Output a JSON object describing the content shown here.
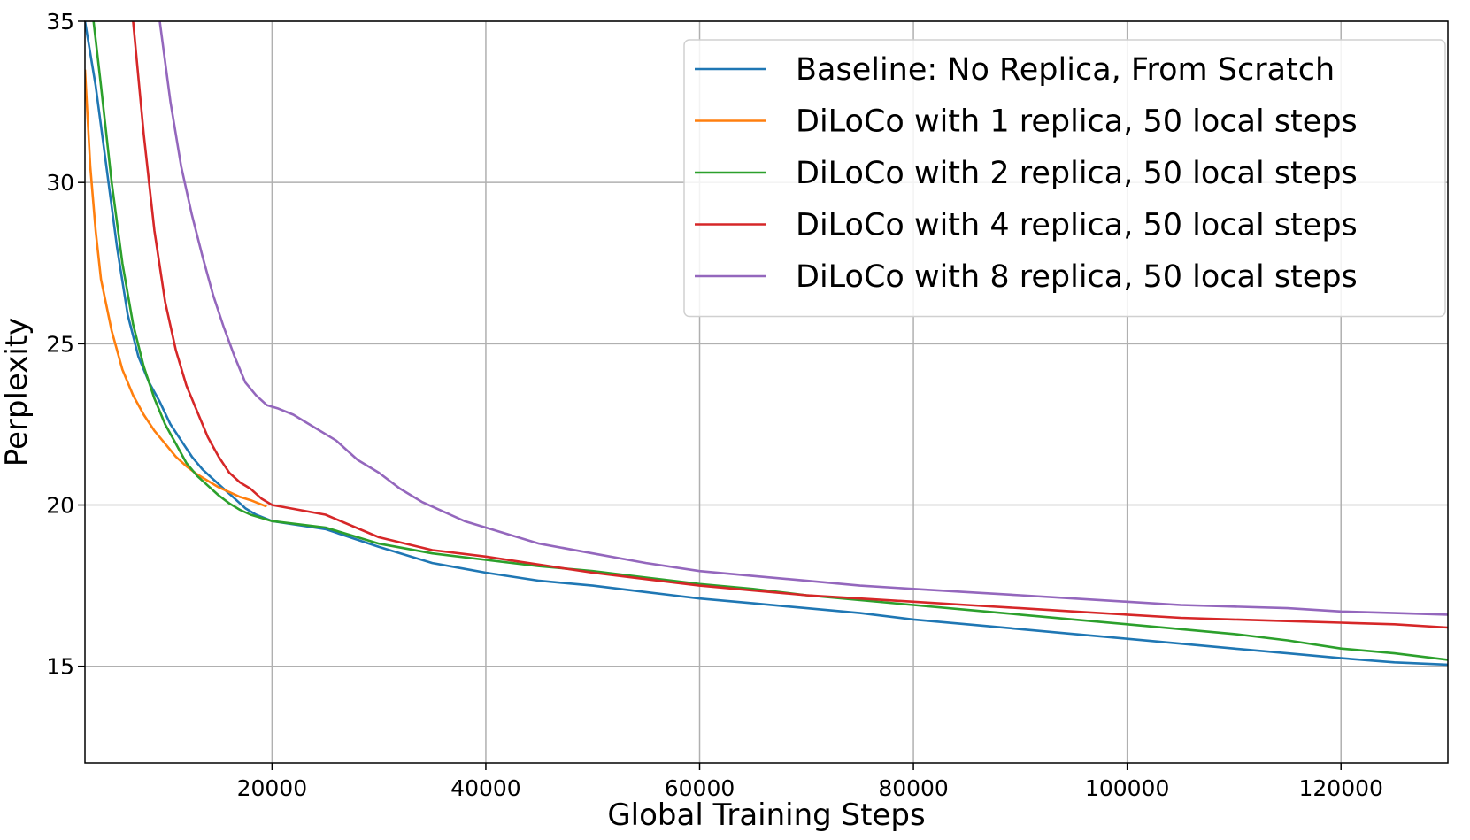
{
  "chart_data": {
    "type": "line",
    "title": "",
    "xlabel": "Global Training Steps",
    "ylabel": "Perplexity",
    "xlim": [
      2500,
      130000
    ],
    "ylim": [
      12,
      35
    ],
    "x_ticks": [
      20000,
      40000,
      60000,
      80000,
      100000,
      120000
    ],
    "y_ticks": [
      15,
      20,
      25,
      30,
      35
    ],
    "grid": true,
    "legend_position": "top-right",
    "series": [
      {
        "name": "Baseline: No Replica, From Scratch",
        "color": "#1f77b4",
        "points": [
          [
            2500,
            35
          ],
          [
            3500,
            33
          ],
          [
            4500,
            30.5
          ],
          [
            5500,
            28
          ],
          [
            6500,
            25.9
          ],
          [
            7500,
            24.6
          ],
          [
            8500,
            23.8
          ],
          [
            9500,
            23.2
          ],
          [
            10500,
            22.5
          ],
          [
            11500,
            22
          ],
          [
            12500,
            21.5
          ],
          [
            13500,
            21.1
          ],
          [
            14500,
            20.8
          ],
          [
            15500,
            20.5
          ],
          [
            16500,
            20.2
          ],
          [
            17500,
            19.9
          ],
          [
            18500,
            19.7
          ],
          [
            20000,
            19.5
          ],
          [
            25000,
            19.25
          ],
          [
            30000,
            18.7
          ],
          [
            35000,
            18.2
          ],
          [
            40000,
            17.9
          ],
          [
            45000,
            17.65
          ],
          [
            50000,
            17.5
          ],
          [
            55000,
            17.3
          ],
          [
            60000,
            17.1
          ],
          [
            65000,
            16.95
          ],
          [
            70000,
            16.8
          ],
          [
            75000,
            16.65
          ],
          [
            80000,
            16.45
          ],
          [
            85000,
            16.3
          ],
          [
            90000,
            16.15
          ],
          [
            95000,
            16
          ],
          [
            100000,
            15.85
          ],
          [
            105000,
            15.7
          ],
          [
            110000,
            15.55
          ],
          [
            115000,
            15.4
          ],
          [
            120000,
            15.25
          ],
          [
            125000,
            15.12
          ],
          [
            130000,
            15.05
          ]
        ]
      },
      {
        "name": "DiLoCo with 1 replica, 50 local steps",
        "color": "#ff7f0e",
        "points": [
          [
            2500,
            33.5
          ],
          [
            3000,
            30.5
          ],
          [
            3500,
            28.5
          ],
          [
            4000,
            27
          ],
          [
            5000,
            25.4
          ],
          [
            6000,
            24.2
          ],
          [
            7000,
            23.4
          ],
          [
            8000,
            22.8
          ],
          [
            9000,
            22.3
          ],
          [
            10000,
            21.9
          ],
          [
            11000,
            21.5
          ],
          [
            12000,
            21.2
          ],
          [
            13000,
            20.95
          ],
          [
            14000,
            20.75
          ],
          [
            15000,
            20.55
          ],
          [
            16000,
            20.4
          ],
          [
            17000,
            20.25
          ],
          [
            18000,
            20.15
          ],
          [
            19500,
            19.95
          ]
        ]
      },
      {
        "name": "DiLoCo with 2 replica, 50 local steps",
        "color": "#2ca02c",
        "points": [
          [
            3300,
            35
          ],
          [
            4000,
            33
          ],
          [
            5000,
            30
          ],
          [
            6000,
            27.5
          ],
          [
            7000,
            25.6
          ],
          [
            8000,
            24.3
          ],
          [
            9000,
            23.3
          ],
          [
            10000,
            22.5
          ],
          [
            11000,
            21.9
          ],
          [
            12000,
            21.3
          ],
          [
            13000,
            20.9
          ],
          [
            14000,
            20.6
          ],
          [
            15000,
            20.3
          ],
          [
            16000,
            20.05
          ],
          [
            17000,
            19.85
          ],
          [
            18000,
            19.7
          ],
          [
            20000,
            19.5
          ],
          [
            25000,
            19.3
          ],
          [
            30000,
            18.8
          ],
          [
            35000,
            18.5
          ],
          [
            40000,
            18.3
          ],
          [
            45000,
            18.1
          ],
          [
            50000,
            17.95
          ],
          [
            55000,
            17.75
          ],
          [
            60000,
            17.55
          ],
          [
            65000,
            17.4
          ],
          [
            70000,
            17.2
          ],
          [
            75000,
            17.05
          ],
          [
            80000,
            16.9
          ],
          [
            85000,
            16.75
          ],
          [
            90000,
            16.6
          ],
          [
            95000,
            16.45
          ],
          [
            100000,
            16.3
          ],
          [
            105000,
            16.15
          ],
          [
            110000,
            16
          ],
          [
            115000,
            15.8
          ],
          [
            120000,
            15.55
          ],
          [
            125000,
            15.4
          ],
          [
            130000,
            15.2
          ]
        ]
      },
      {
        "name": "DiLoCo with 4 replica, 50 local steps",
        "color": "#d62728",
        "points": [
          [
            7000,
            35
          ],
          [
            8000,
            31.5
          ],
          [
            9000,
            28.5
          ],
          [
            10000,
            26.3
          ],
          [
            11000,
            24.8
          ],
          [
            12000,
            23.7
          ],
          [
            13000,
            22.9
          ],
          [
            14000,
            22.1
          ],
          [
            15000,
            21.5
          ],
          [
            16000,
            21
          ],
          [
            17000,
            20.7
          ],
          [
            18000,
            20.5
          ],
          [
            19000,
            20.2
          ],
          [
            20000,
            20
          ],
          [
            25000,
            19.7
          ],
          [
            30000,
            19
          ],
          [
            35000,
            18.6
          ],
          [
            40000,
            18.4
          ],
          [
            45000,
            18.15
          ],
          [
            50000,
            17.9
          ],
          [
            55000,
            17.7
          ],
          [
            60000,
            17.5
          ],
          [
            65000,
            17.35
          ],
          [
            70000,
            17.2
          ],
          [
            75000,
            17.1
          ],
          [
            80000,
            17
          ],
          [
            85000,
            16.9
          ],
          [
            90000,
            16.8
          ],
          [
            95000,
            16.7
          ],
          [
            100000,
            16.6
          ],
          [
            105000,
            16.5
          ],
          [
            110000,
            16.45
          ],
          [
            115000,
            16.4
          ],
          [
            120000,
            16.35
          ],
          [
            125000,
            16.3
          ],
          [
            130000,
            16.2
          ]
        ]
      },
      {
        "name": "DiLoCo with 8 replica, 50 local steps",
        "color": "#9467bd",
        "points": [
          [
            9500,
            35
          ],
          [
            10500,
            32.5
          ],
          [
            11500,
            30.5
          ],
          [
            12500,
            29
          ],
          [
            13500,
            27.7
          ],
          [
            14500,
            26.5
          ],
          [
            15500,
            25.5
          ],
          [
            16500,
            24.6
          ],
          [
            17500,
            23.8
          ],
          [
            18500,
            23.4
          ],
          [
            19500,
            23.1
          ],
          [
            20500,
            23
          ],
          [
            22000,
            22.8
          ],
          [
            24000,
            22.4
          ],
          [
            26000,
            22
          ],
          [
            28000,
            21.4
          ],
          [
            30000,
            21
          ],
          [
            32000,
            20.5
          ],
          [
            34000,
            20.1
          ],
          [
            36000,
            19.8
          ],
          [
            38000,
            19.5
          ],
          [
            40000,
            19.3
          ],
          [
            45000,
            18.8
          ],
          [
            50000,
            18.5
          ],
          [
            55000,
            18.2
          ],
          [
            60000,
            17.95
          ],
          [
            65000,
            17.8
          ],
          [
            70000,
            17.65
          ],
          [
            75000,
            17.5
          ],
          [
            80000,
            17.4
          ],
          [
            85000,
            17.3
          ],
          [
            90000,
            17.2
          ],
          [
            95000,
            17.1
          ],
          [
            100000,
            17
          ],
          [
            105000,
            16.9
          ],
          [
            110000,
            16.85
          ],
          [
            115000,
            16.8
          ],
          [
            120000,
            16.7
          ],
          [
            125000,
            16.65
          ],
          [
            130000,
            16.6
          ]
        ]
      }
    ]
  }
}
